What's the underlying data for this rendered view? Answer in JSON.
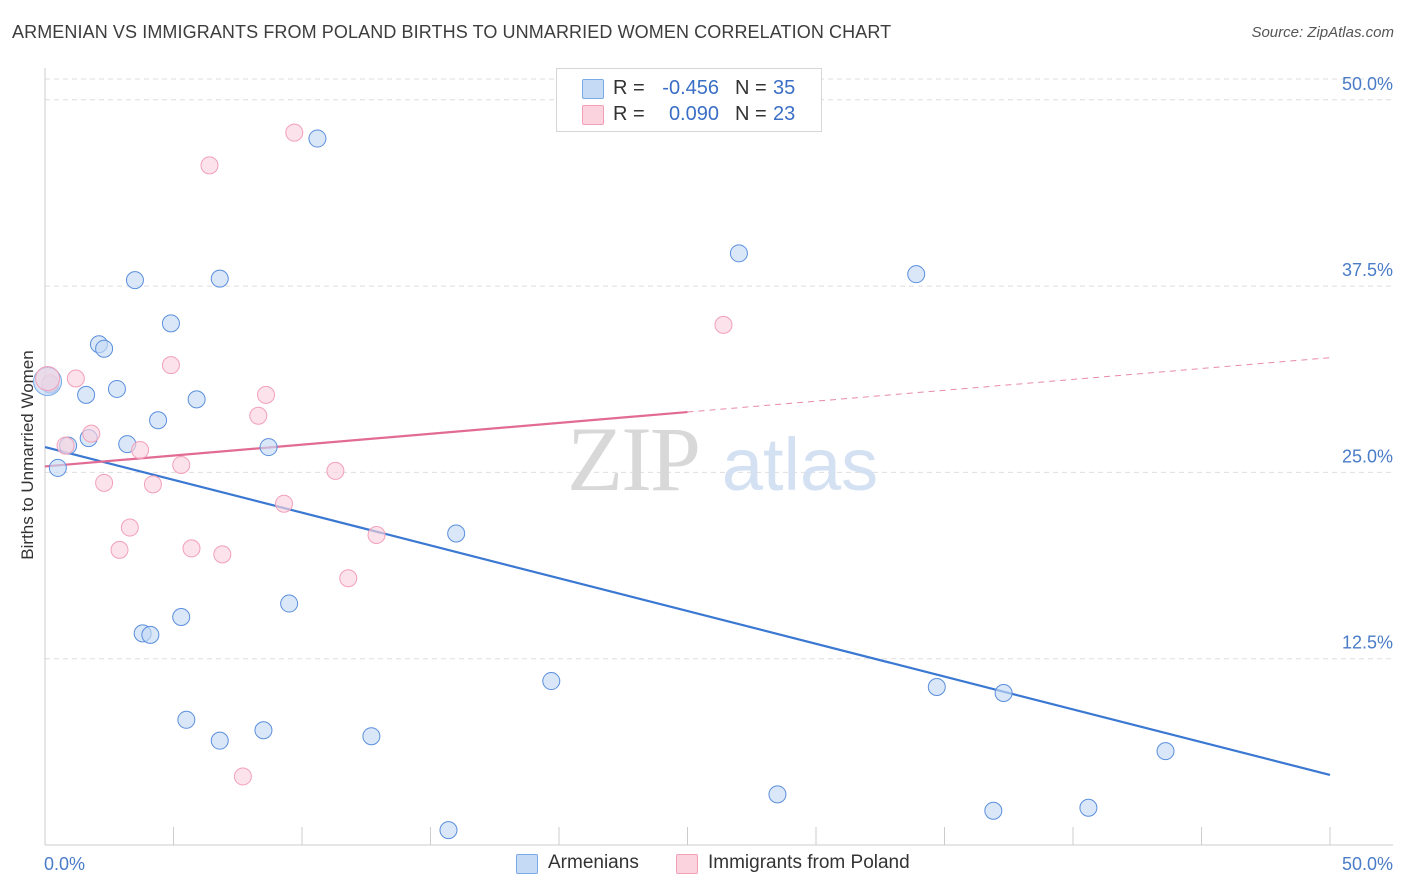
{
  "header": {
    "title": "ARMENIAN VS IMMIGRANTS FROM POLAND BIRTHS TO UNMARRIED WOMEN CORRELATION CHART",
    "source": "Source: ZipAtlas.com"
  },
  "watermark": {
    "zip": "ZIP",
    "atlas": "atlas"
  },
  "legend": {
    "rows": [
      {
        "r_label": "R =",
        "r_value": "-0.456",
        "n_label": "N =",
        "n_value": "35",
        "color": "#7aaae8",
        "fill": "#c5daf5"
      },
      {
        "r_label": "R =",
        "r_value": "0.090",
        "n_label": "N =",
        "n_value": "23",
        "color": "#f2a0b8",
        "fill": "#fbd3df"
      }
    ]
  },
  "bottom_legend": [
    {
      "label": "Armenians",
      "color": "#7aaae8",
      "fill": "#c5daf5"
    },
    {
      "label": "Immigrants from Poland",
      "color": "#f2a0b8",
      "fill": "#fbd3df"
    }
  ],
  "chart_data": {
    "type": "scatter",
    "ylabel": "Births to Unmarried Women",
    "xlabel": "",
    "xlim": [
      0,
      50
    ],
    "ylim": [
      0,
      52
    ],
    "x_tick_labels": {
      "left": "0.0%",
      "right": "50.0%"
    },
    "y_ticks": [
      {
        "value": 12.5,
        "label": "12.5%"
      },
      {
        "value": 25.0,
        "label": "25.0%"
      },
      {
        "value": 37.5,
        "label": "37.5%"
      },
      {
        "value": 50.0,
        "label": "50.0%"
      }
    ],
    "grid": true,
    "legend_position": "top-center",
    "series": [
      {
        "name": "Armenians",
        "color": "#5b8fdd",
        "fill": "#c5daf5",
        "trend": {
          "x": [
            0,
            50
          ],
          "y": [
            26.7,
            4.7
          ],
          "dashed_from": null,
          "color": "#3a78d2"
        },
        "points": [
          [
            0.2,
            30.9
          ],
          [
            0.5,
            25.3
          ],
          [
            0.9,
            26.8
          ],
          [
            1.6,
            30.2
          ],
          [
            1.7,
            27.3
          ],
          [
            2.1,
            33.6
          ],
          [
            2.3,
            33.3
          ],
          [
            2.8,
            30.6
          ],
          [
            3.2,
            26.9
          ],
          [
            3.5,
            37.9
          ],
          [
            3.8,
            14.2
          ],
          [
            4.1,
            14.1
          ],
          [
            4.4,
            28.5
          ],
          [
            4.9,
            35.0
          ],
          [
            5.3,
            15.3
          ],
          [
            5.5,
            8.4
          ],
          [
            5.9,
            29.9
          ],
          [
            6.8,
            7.0
          ],
          [
            6.8,
            38.0
          ],
          [
            8.5,
            7.7
          ],
          [
            8.7,
            26.7
          ],
          [
            9.5,
            16.2
          ],
          [
            10.6,
            47.4
          ],
          [
            12.7,
            7.3
          ],
          [
            15.7,
            1.0
          ],
          [
            16.0,
            20.9
          ],
          [
            19.7,
            11.0
          ],
          [
            27.0,
            39.7
          ],
          [
            28.5,
            3.4
          ],
          [
            33.9,
            38.3
          ],
          [
            34.7,
            10.6
          ],
          [
            36.9,
            2.3
          ],
          [
            37.3,
            10.2
          ],
          [
            40.6,
            2.5
          ],
          [
            43.6,
            6.3
          ]
        ]
      },
      {
        "name": "Immigrants from Poland",
        "color": "#f2a0b8",
        "fill": "#fbd3df",
        "trend": {
          "x": [
            0,
            50
          ],
          "y": [
            25.4,
            32.7
          ],
          "dashed_from": 25,
          "color": "#e26b93"
        },
        "points": [
          [
            0.2,
            31.0
          ],
          [
            0.8,
            26.8
          ],
          [
            1.2,
            31.3
          ],
          [
            1.8,
            27.6
          ],
          [
            2.3,
            24.3
          ],
          [
            2.9,
            19.8
          ],
          [
            3.3,
            21.3
          ],
          [
            3.7,
            26.5
          ],
          [
            4.2,
            24.2
          ],
          [
            4.9,
            32.2
          ],
          [
            5.3,
            25.5
          ],
          [
            5.7,
            19.9
          ],
          [
            6.4,
            45.6
          ],
          [
            6.9,
            19.5
          ],
          [
            7.7,
            4.6
          ],
          [
            8.3,
            28.8
          ],
          [
            8.6,
            30.2
          ],
          [
            9.3,
            22.9
          ],
          [
            9.7,
            47.8
          ],
          [
            11.3,
            25.1
          ],
          [
            11.8,
            17.9
          ],
          [
            12.9,
            20.8
          ],
          [
            26.4,
            34.9
          ]
        ]
      }
    ]
  }
}
